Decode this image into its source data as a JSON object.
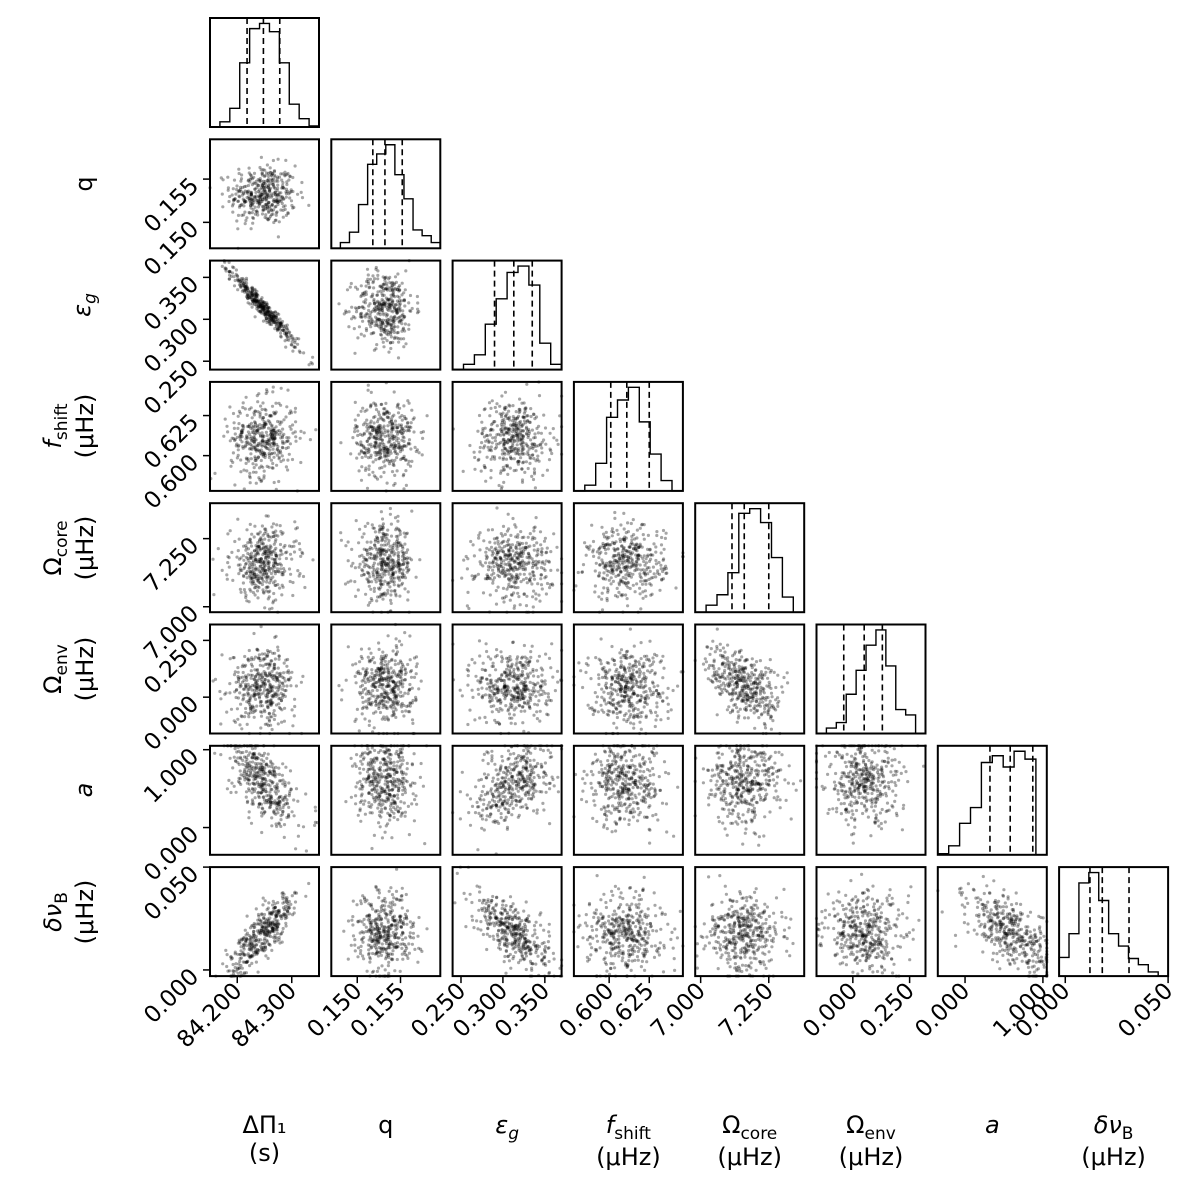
{
  "chart_data": {
    "type": "scatter",
    "title": "",
    "grid": false,
    "parameters": [
      {
        "id": "dpi1",
        "label": "ΔΠ₁",
        "unit": "(s)",
        "range": [
          84.15,
          84.35
        ],
        "ticks": [
          "84.200",
          "84.300"
        ],
        "tick_values": [
          84.2,
          84.3
        ],
        "quantiles": [
          84.218,
          84.248,
          84.278
        ]
      },
      {
        "id": "q",
        "label": "q",
        "unit": "",
        "range": [
          0.147,
          0.1596
        ],
        "ticks": [
          "0.150",
          "0.155"
        ],
        "tick_values": [
          0.15,
          0.155
        ],
        "quantiles": [
          0.1518,
          0.1532,
          0.1552
        ]
      },
      {
        "id": "eps",
        "label": "ε_g",
        "unit": "",
        "range": [
          0.24,
          0.37
        ],
        "ticks": [
          "0.250",
          "0.300",
          "0.350"
        ],
        "tick_values": [
          0.25,
          0.3,
          0.35
        ],
        "quantiles": [
          0.29,
          0.313,
          0.335
        ]
      },
      {
        "id": "fshift",
        "label": "f_shift",
        "unit": "(μHz)",
        "range": [
          0.578,
          0.646
        ],
        "ticks": [
          "0.600",
          "0.625"
        ],
        "tick_values": [
          0.6,
          0.625
        ],
        "quantiles": [
          0.601,
          0.611,
          0.625
        ]
      },
      {
        "id": "ocore",
        "label": "Ω_core",
        "unit": "(μHz)",
        "range": [
          6.98,
          7.38
        ],
        "ticks": [
          "7.000",
          "7.250"
        ],
        "tick_values": [
          7.0,
          7.25
        ],
        "quantiles": [
          7.115,
          7.16,
          7.25
        ]
      },
      {
        "id": "oenv",
        "label": "Ω_env",
        "unit": "(μHz)",
        "range": [
          -0.16,
          0.32
        ],
        "ticks": [
          "0.000",
          "0.250"
        ],
        "tick_values": [
          0.0,
          0.25
        ],
        "quantiles": [
          -0.04,
          0.05,
          0.13
        ]
      },
      {
        "id": "a",
        "label": "a",
        "unit": "",
        "range": [
          -0.35,
          1.05
        ],
        "ticks": [
          "0.000",
          "1.000"
        ],
        "tick_values": [
          0.0,
          1.0
        ],
        "quantiles": [
          0.32,
          0.58,
          0.87
        ]
      },
      {
        "id": "dnub",
        "label": "δν_B",
        "unit": "(μHz)",
        "range": [
          -0.003,
          0.05
        ],
        "ticks": [
          "0.000",
          "0.050"
        ],
        "tick_values": [
          0.0,
          0.05
        ],
        "quantiles": [
          0.012,
          0.018,
          0.031
        ]
      }
    ],
    "histograms": [
      [
        0,
        5,
        18,
        62,
        95,
        100,
        92,
        62,
        22,
        8,
        1
      ],
      [
        0,
        5,
        14,
        38,
        73,
        82,
        90,
        64,
        43,
        16,
        11,
        5
      ],
      [
        0,
        5,
        14,
        43,
        67,
        92,
        98,
        80,
        25,
        5
      ],
      [
        0,
        5,
        24,
        64,
        79,
        90,
        60,
        32,
        9,
        0
      ],
      [
        0,
        6,
        15,
        34,
        85,
        89,
        77,
        47,
        13,
        0
      ],
      [
        0,
        5,
        10,
        36,
        58,
        81,
        95,
        62,
        22,
        17,
        0
      ],
      [
        1,
        8,
        28,
        42,
        82,
        88,
        78,
        92,
        85,
        0
      ],
      [
        18,
        41,
        90,
        100,
        73,
        41,
        29,
        17,
        11,
        4,
        0
      ]
    ],
    "correlations": [
      [
        1
      ],
      [
        0,
        1
      ],
      [
        -0.97,
        0,
        1
      ],
      [
        0,
        0,
        0,
        1
      ],
      [
        0,
        0,
        0,
        0,
        1
      ],
      [
        0,
        0,
        0,
        0,
        -0.5,
        1
      ],
      [
        -0.55,
        0,
        0.45,
        0,
        0,
        0,
        1
      ],
      [
        0.82,
        0,
        -0.65,
        0,
        0,
        0,
        -0.6,
        1
      ]
    ],
    "samples_per_panel": 400
  }
}
